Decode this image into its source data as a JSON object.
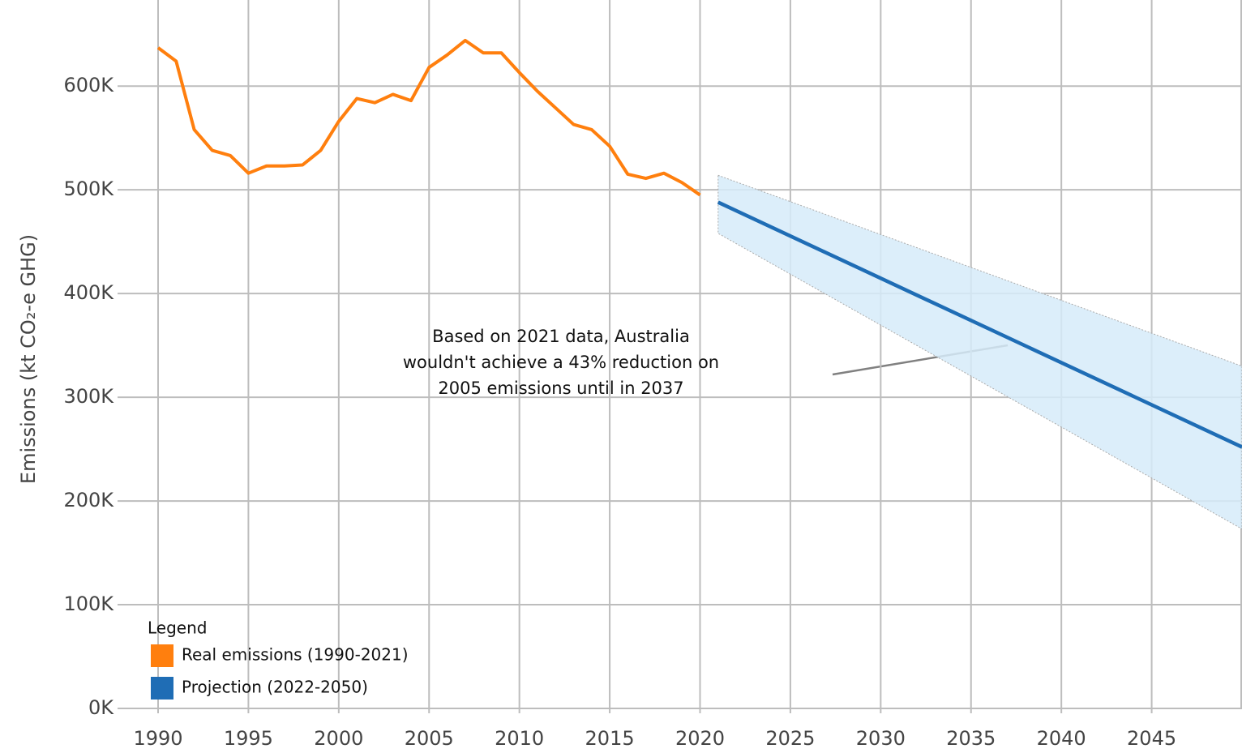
{
  "chart_data": {
    "type": "line",
    "y_label": "Emissions (kt CO₂-e GHG)",
    "xlim": [
      1990,
      2050
    ],
    "ylim": [
      0,
      683000
    ],
    "xticks": [
      1990,
      1995,
      2000,
      2005,
      2010,
      2015,
      2020,
      2025,
      2030,
      2035,
      2040,
      2045
    ],
    "yticks": [
      {
        "value": 0,
        "label": "0K"
      },
      {
        "value": 100000,
        "label": "100K"
      },
      {
        "value": 200000,
        "label": "200K"
      },
      {
        "value": 300000,
        "label": "300K"
      },
      {
        "value": 400000,
        "label": "400K"
      },
      {
        "value": 500000,
        "label": "500K"
      },
      {
        "value": 600000,
        "label": "600K"
      }
    ],
    "grid": true,
    "legend_title": "Legend",
    "legend_position": "bottom-left",
    "series": [
      {
        "name": "Real emissions (1990-2021)",
        "color": "#ff7f0e",
        "x": [
          1990,
          1991,
          1992,
          1993,
          1994,
          1995,
          1996,
          1997,
          1998,
          1999,
          2000,
          2001,
          2002,
          2003,
          2004,
          2005,
          2006,
          2007,
          2008,
          2009,
          2010,
          2011,
          2012,
          2013,
          2014,
          2015,
          2016,
          2017,
          2018,
          2019,
          2020
        ],
        "values": [
          637000,
          624000,
          558000,
          538000,
          533000,
          516000,
          523000,
          523000,
          524000,
          538000,
          566000,
          588000,
          584000,
          592000,
          586000,
          618000,
          630000,
          644000,
          632000,
          632000,
          613000,
          595000,
          579000,
          563000,
          558000,
          542000,
          515000,
          511000,
          516000,
          507000,
          495000
        ]
      },
      {
        "name": "Projection (2022-2050)",
        "color": "#1f6db5",
        "band_color": "#d6ebf9",
        "x": [
          2021,
          2050
        ],
        "values": [
          488000,
          252000
        ],
        "lower": [
          458000,
          173000
        ],
        "upper": [
          514000,
          330000
        ]
      }
    ],
    "annotation": [
      "Based on 2021 data, Australia",
      "wouldn't  achieve a 43% reduction on",
      "2005 emissions until  in 2037"
    ]
  }
}
